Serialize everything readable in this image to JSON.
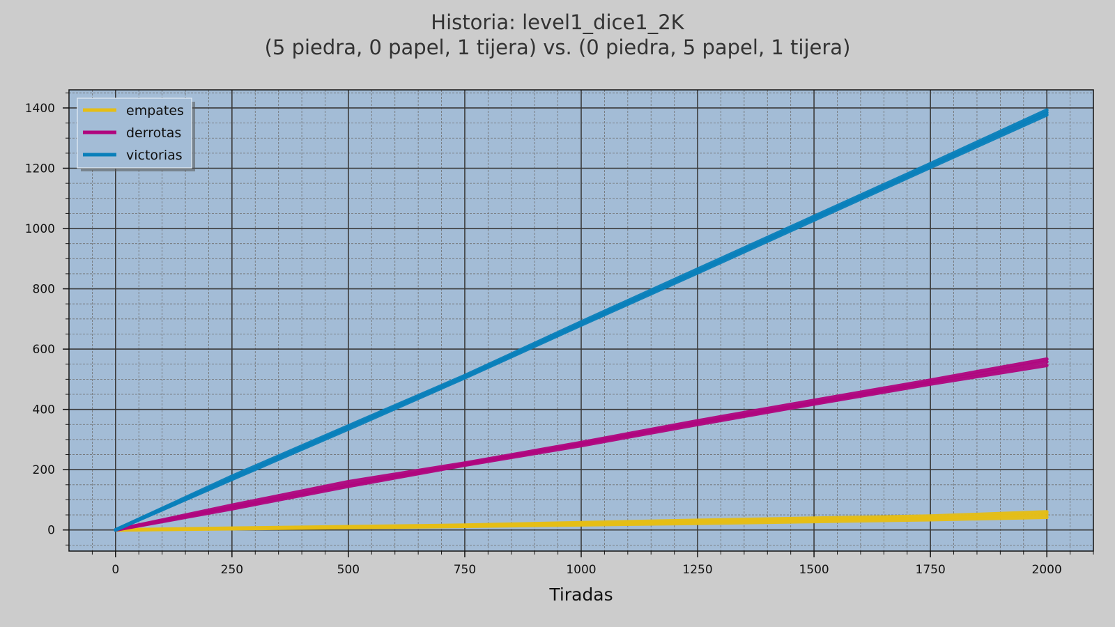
{
  "chart_data": {
    "type": "line",
    "title_line1": "Historia: level1_dice1_2K",
    "title_line2": "(5 piedra, 0 papel, 1 tijera) vs. (0 piedra, 5 papel, 1 tijera)",
    "xlabel": "Tiradas",
    "ylabel": "",
    "xlim": [
      -100,
      2100
    ],
    "ylim": [
      -70,
      1460
    ],
    "xticks": [
      0,
      250,
      500,
      750,
      1000,
      1250,
      1500,
      1750,
      2000
    ],
    "yticks": [
      0,
      200,
      400,
      600,
      800,
      1000,
      1200,
      1400
    ],
    "grid": true,
    "legend_position": "top-left",
    "background_color": "#a3bcd6",
    "figure_color": "#cccccc",
    "series": [
      {
        "name": "empates",
        "color": "#e6be14",
        "runs": [
          {
            "x": [
              0,
              250,
              500,
              750,
              1000,
              1250,
              1500,
              1750,
              2000
            ],
            "y": [
              0,
              6,
              11,
              16,
              24,
              32,
              39,
              46,
              60
            ]
          },
          {
            "x": [
              0,
              250,
              500,
              750,
              1000,
              1250,
              1500,
              1750,
              2000
            ],
            "y": [
              0,
              5,
              9,
              14,
              20,
              27,
              33,
              39,
              52
            ]
          },
          {
            "x": [
              0,
              250,
              500,
              750,
              1000,
              1250,
              1500,
              1750,
              2000
            ],
            "y": [
              0,
              4,
              8,
              12,
              17,
              22,
              28,
              34,
              42
            ]
          }
        ]
      },
      {
        "name": "derrotas",
        "color": "#b0057e",
        "runs": [
          {
            "x": [
              0,
              250,
              500,
              750,
              1000,
              1250,
              1500,
              1750,
              2000
            ],
            "y": [
              0,
              82,
              160,
              222,
              290,
              362,
              430,
              497,
              567
            ]
          },
          {
            "x": [
              0,
              250,
              500,
              750,
              1000,
              1250,
              1500,
              1750,
              2000
            ],
            "y": [
              0,
              75,
              150,
              218,
              285,
              355,
              422,
              490,
              558
            ]
          },
          {
            "x": [
              0,
              250,
              500,
              750,
              1000,
              1250,
              1500,
              1750,
              2000
            ],
            "y": [
              0,
              70,
              145,
              215,
              280,
              350,
              418,
              484,
              546
            ]
          }
        ]
      },
      {
        "name": "victorias",
        "color": "#0a7fba",
        "runs": [
          {
            "x": [
              0,
              250,
              500,
              750,
              1000,
              1250,
              1500,
              1750,
              2000
            ],
            "y": [
              0,
              178,
              345,
              512,
              690,
              865,
              1040,
              1215,
              1393
            ]
          },
          {
            "x": [
              0,
              250,
              500,
              750,
              1000,
              1250,
              1500,
              1750,
              2000
            ],
            "y": [
              0,
              172,
              340,
              508,
              684,
              858,
              1034,
              1208,
              1385
            ]
          },
          {
            "x": [
              0,
              250,
              500,
              750,
              1000,
              1250,
              1500,
              1750,
              2000
            ],
            "y": [
              0,
              168,
              335,
              505,
              680,
              853,
              1028,
              1203,
              1377
            ]
          }
        ]
      }
    ]
  }
}
